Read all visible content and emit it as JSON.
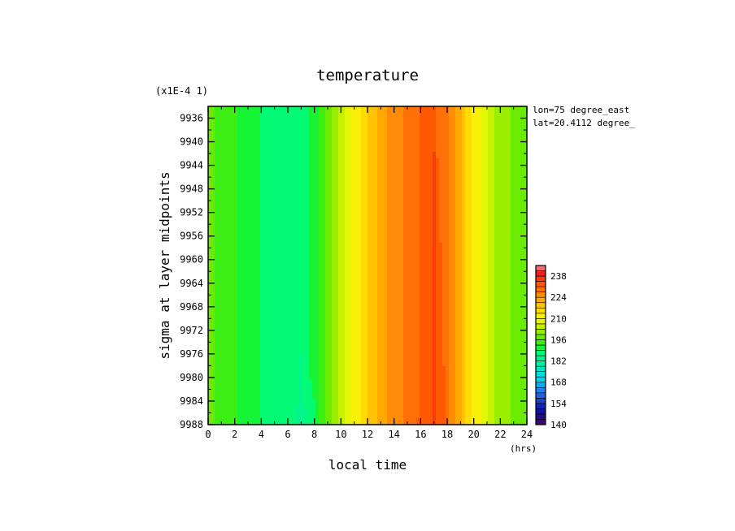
{
  "chart_data": {
    "type": "heatmap",
    "title": "temperature",
    "scale_factor_label": "(x1E-4 1)",
    "xlabel": "local time",
    "xunit": "(hrs)",
    "ylabel": "sigma at layer midpoints",
    "annotations": [
      "lon=75 degree_east",
      "lat=20.4112 degree_"
    ],
    "xlim": [
      0,
      24
    ],
    "ylim": [
      9988,
      9934
    ],
    "x_ticks": [
      "0",
      "2",
      "4",
      "6",
      "8",
      "10",
      "12",
      "14",
      "16",
      "18",
      "20",
      "22",
      "24"
    ],
    "y_ticks": [
      "9936",
      "9940",
      "9944",
      "9948",
      "9952",
      "9956",
      "9960",
      "9964",
      "9968",
      "9972",
      "9976",
      "9980",
      "9984",
      "9988"
    ],
    "colorbar": {
      "min": 140,
      "max": 245,
      "tick_labels": [
        "140",
        "154",
        "168",
        "182",
        "196",
        "210",
        "224",
        "238"
      ]
    },
    "x": [
      0,
      2,
      4,
      6,
      7,
      8,
      10,
      12,
      14,
      16,
      17,
      18,
      20,
      22,
      24
    ],
    "values_by_time": [
      197,
      193,
      189,
      188,
      187,
      190,
      205,
      217,
      226,
      231,
      232,
      228,
      213,
      201,
      197
    ],
    "warm_core": {
      "x_center": 17,
      "peak": 235,
      "sigma_top": 9942,
      "sigma_bottom": 9988
    },
    "cool_core": {
      "x_center": 7,
      "trough": 185,
      "sigma_top": 9976,
      "sigma_bottom": 9988
    }
  }
}
